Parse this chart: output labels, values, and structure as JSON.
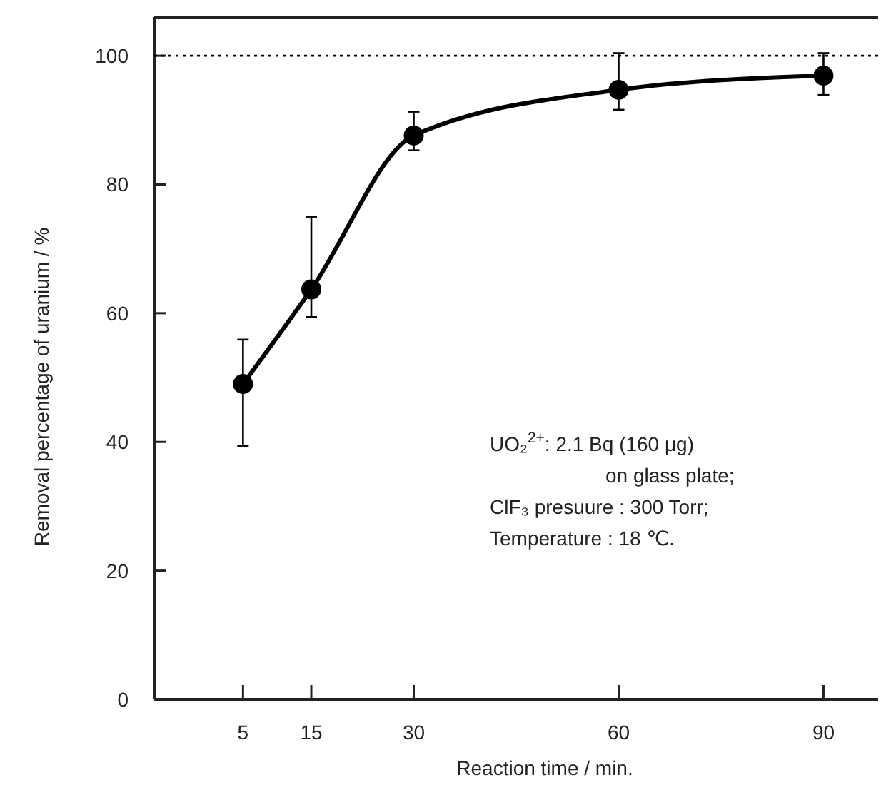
{
  "chart_data": {
    "type": "line",
    "xlabel": "Reaction time  / min.",
    "ylabel": "Removal percentage of uranium  / %",
    "x": [
      5,
      15,
      30,
      60,
      90
    ],
    "series": [
      {
        "color": "#000000",
        "values": [
          49.0,
          63.7,
          87.6,
          94.7,
          96.9
        ],
        "errors": [
          [
            39.4,
            55.9
          ],
          [
            59.4,
            75.0
          ],
          [
            85.3,
            91.3
          ],
          [
            91.6,
            100.4
          ],
          [
            93.9,
            100.4
          ]
        ]
      }
    ],
    "xlim": [
      -8,
      98
    ],
    "xticks": [
      5,
      15,
      30,
      60,
      90
    ],
    "ylim": [
      0,
      106
    ],
    "yticks": [
      0,
      20,
      40,
      60,
      80,
      100
    ],
    "marker": "circle",
    "line_style": "solid",
    "grid": false,
    "ref_lines": [
      {
        "axis": "y",
        "value": 100,
        "line_style": "dotted",
        "color": "#000000"
      }
    ],
    "annotations": [
      "UO₂$^{2+}$:  2.1 Bq (160 μg)",
      "on glass plate;",
      "ClF₃ presuure : 300 Torr;",
      "Temperature :  18 ℃."
    ]
  }
}
